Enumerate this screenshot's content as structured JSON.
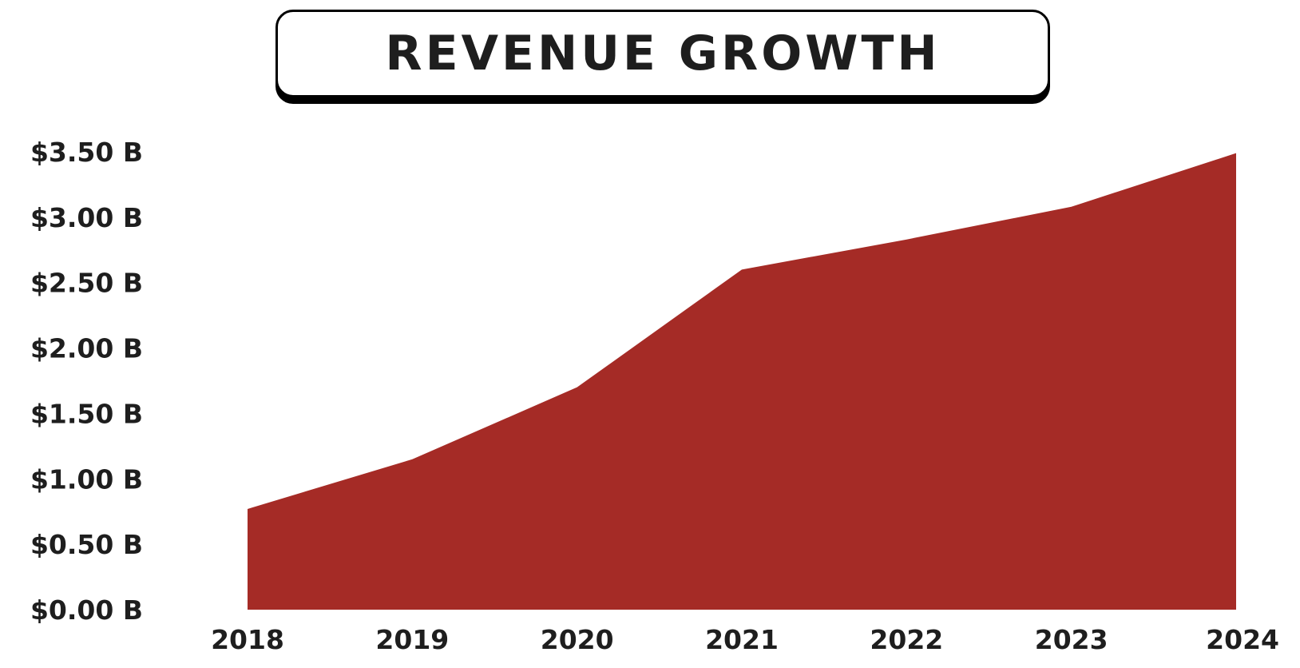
{
  "chart_data": {
    "type": "area",
    "title": "REVENUE GROWTH",
    "categories": [
      "2018",
      "2019",
      "2020",
      "2021",
      "2022",
      "2023",
      "2024"
    ],
    "values": [
      0.77,
      1.15,
      1.7,
      2.6,
      2.83,
      3.08,
      3.49
    ],
    "y_tick_labels": [
      "$0.00 B",
      "$0.50 B",
      "$1.00 B",
      "$1.50 B",
      "$2.00 B",
      "$2.50 B",
      "$3.00 B",
      "$3.50 B"
    ],
    "y_ticks": [
      0,
      0.5,
      1.0,
      1.5,
      2.0,
      2.5,
      3.0,
      3.5
    ],
    "ylim": [
      0,
      3.5
    ],
    "units": "billions of dollars",
    "xlabel": "",
    "ylabel": "",
    "grid": false,
    "legend": "none",
    "colors": {
      "fill": "#a52b26",
      "text": "#1e1e1e",
      "title_border": "#000000"
    }
  }
}
